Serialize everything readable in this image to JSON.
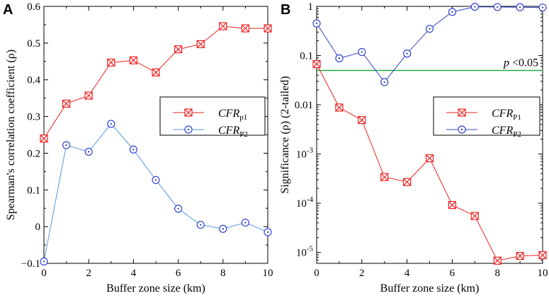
{
  "chart_data": [
    {
      "panel": "A",
      "type": "line",
      "xlabel": "Buffer zone size (km)",
      "ylabel": "Spearman's correlation coefficient (ρ)",
      "xlim": [
        0,
        10
      ],
      "ylim": [
        -0.1,
        0.6
      ],
      "xticks": [
        "0",
        "2",
        "4",
        "6",
        "8",
        "10"
      ],
      "yticks": [
        "−0.1",
        "0",
        "0.1",
        "0.2",
        "0.3",
        "0.4",
        "0.5",
        "0.6"
      ],
      "x": [
        0,
        1,
        2,
        3,
        4,
        5,
        6,
        7,
        8,
        9,
        10
      ],
      "series": [
        {
          "name": "CFR",
          "sub": "p1",
          "color": "#ee2222",
          "marker": "square-x",
          "values": [
            0.24,
            0.335,
            0.357,
            0.447,
            0.453,
            0.42,
            0.483,
            0.497,
            0.546,
            0.54,
            0.54
          ]
        },
        {
          "name": "CFR",
          "sub": "P2",
          "color": "#3344cc",
          "line_color": "#5599dd",
          "marker": "circle-dot",
          "values": [
            -0.095,
            0.222,
            0.204,
            0.28,
            0.21,
            0.127,
            0.049,
            0.005,
            -0.006,
            0.011,
            -0.015
          ]
        }
      ]
    },
    {
      "panel": "B",
      "type": "line",
      "yscale": "log",
      "xlabel": "Buffer zone size (km)",
      "ylabel": "Significance (ρ) (2-tailed)",
      "xlim": [
        0,
        10
      ],
      "ylim": [
        6e-06,
        1
      ],
      "xticks": [
        "0",
        "2",
        "4",
        "6",
        "8",
        "10"
      ],
      "yticks": [
        {
          "value": 1,
          "label": "1"
        },
        {
          "value": 0.1,
          "label": "0.1"
        },
        {
          "value": 0.01,
          "label": "0.01"
        },
        {
          "value": 0.001,
          "base": "10",
          "exp": "-3"
        },
        {
          "value": 0.0001,
          "base": "10",
          "exp": "-4"
        },
        {
          "value": 1e-05,
          "base": "10",
          "exp": "-5"
        }
      ],
      "x": [
        0,
        1,
        2,
        3,
        4,
        5,
        6,
        7,
        8,
        9,
        10
      ],
      "series": [
        {
          "name": "CFR",
          "sub": "P1",
          "color": "#ee2222",
          "marker": "square-x",
          "values": [
            0.067,
            0.0088,
            0.0049,
            0.00034,
            0.00027,
            0.00082,
            9.2e-05,
            5.5e-05,
            6.8e-06,
            8.5e-06,
            8.8e-06
          ]
        },
        {
          "name": "CFR",
          "sub": "P2",
          "color": "#3344cc",
          "marker": "circle-dot",
          "values": [
            0.45,
            0.088,
            0.118,
            0.029,
            0.11,
            0.35,
            0.77,
            0.98,
            0.97,
            0.96,
            0.95
          ]
        }
      ],
      "threshold": {
        "value": 0.05,
        "color": "#22aa44",
        "label_p": "p",
        "label_rest": " <0.05"
      }
    }
  ]
}
